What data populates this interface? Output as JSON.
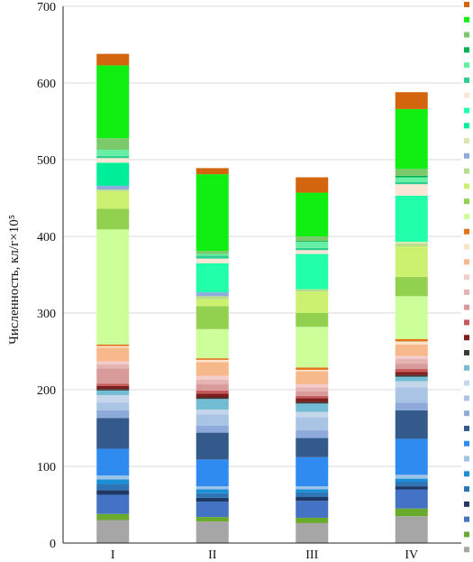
{
  "chart_data": {
    "type": "bar",
    "stacked": true,
    "categories": [
      "I",
      "II",
      "III",
      "IV"
    ],
    "ylabel": "Численность, кл/г×10⁵",
    "ylim": [
      0,
      700
    ],
    "yticks": [
      0,
      100,
      200,
      300,
      400,
      500,
      600,
      700
    ],
    "grid": true,
    "legend": "right",
    "series": [
      {
        "color": "#a6a6a6",
        "values": [
          30,
          28,
          26,
          35
        ]
      },
      {
        "color": "#6aaa2c",
        "values": [
          8,
          6,
          7,
          10
        ]
      },
      {
        "color": "#4472c4",
        "values": [
          25,
          20,
          22,
          25
        ]
      },
      {
        "color": "#1f3864",
        "values": [
          6,
          5,
          5,
          4
        ]
      },
      {
        "color": "#2e75b6",
        "values": [
          8,
          6,
          6,
          6
        ]
      },
      {
        "color": "#1a8fd6",
        "values": [
          6,
          5,
          4,
          4
        ]
      },
      {
        "color": "#9dc3e6",
        "values": [
          5,
          4,
          4,
          5
        ]
      },
      {
        "color": "#2f8bf0",
        "values": [
          35,
          35,
          38,
          47
        ]
      },
      {
        "color": "#345a8c",
        "values": [
          40,
          35,
          25,
          37
        ]
      },
      {
        "color": "#8eaadb",
        "values": [
          10,
          9,
          10,
          10
        ]
      },
      {
        "color": "#a9c4e4",
        "values": [
          10,
          15,
          17,
          20
        ]
      },
      {
        "color": "#c5d5ea",
        "values": [
          10,
          6,
          7,
          8
        ]
      },
      {
        "color": "#72bcd4",
        "values": [
          6,
          14,
          11,
          6
        ]
      },
      {
        "color": "#3a3a3a",
        "values": [
          2,
          2,
          2,
          2
        ]
      },
      {
        "color": "#7f1d1d",
        "values": [
          4,
          5,
          5,
          4
        ]
      },
      {
        "color": "#c65a5a",
        "values": [
          3,
          4,
          3,
          4
        ]
      },
      {
        "color": "#d99a9a",
        "values": [
          20,
          8,
          6,
          7
        ]
      },
      {
        "color": "#e6b3b3",
        "values": [
          5,
          6,
          5,
          6
        ]
      },
      {
        "color": "#f4cccc",
        "values": [
          4,
          5,
          4,
          4
        ]
      },
      {
        "color": "#f7b98b",
        "values": [
          18,
          18,
          17,
          15
        ]
      },
      {
        "color": "#fbe3c8",
        "values": [
          2,
          3,
          2,
          4
        ]
      },
      {
        "color": "#e3731b",
        "values": [
          2,
          2,
          3,
          3
        ]
      },
      {
        "color": "#ccff99",
        "values": [
          150,
          38,
          53,
          56
        ]
      },
      {
        "color": "#92d050",
        "values": [
          27,
          30,
          18,
          25
        ]
      },
      {
        "color": "#ccf070",
        "values": [
          23,
          9,
          28,
          40
        ]
      },
      {
        "color": "#b7dd8a",
        "values": [
          2,
          4,
          3,
          3
        ]
      },
      {
        "color": "#8faadc",
        "values": [
          5,
          5,
          0,
          0
        ]
      },
      {
        "color": "#d9e8b0",
        "values": [
          0,
          0,
          0,
          3
        ]
      },
      {
        "color": "#00ee99",
        "values": [
          30,
          0,
          0,
          0
        ]
      },
      {
        "color": "#22ffaa",
        "values": [
          0,
          38,
          46,
          60
        ]
      },
      {
        "color": "#fbe5d6",
        "values": [
          6,
          6,
          5,
          15
        ]
      },
      {
        "color": "#2ecf8f",
        "values": [
          3,
          4,
          3,
          3
        ]
      },
      {
        "color": "#66f0a6",
        "values": [
          8,
          2,
          8,
          6
        ]
      },
      {
        "color": "#00b050",
        "values": [
          0,
          0,
          1,
          2
        ]
      },
      {
        "color": "#7bc96a",
        "values": [
          15,
          4,
          6,
          9
        ]
      },
      {
        "color": "#11ee11",
        "values": [
          95,
          100,
          57,
          78
        ]
      },
      {
        "color": "#d4650f",
        "values": [
          15,
          8,
          20,
          22
        ]
      }
    ]
  }
}
